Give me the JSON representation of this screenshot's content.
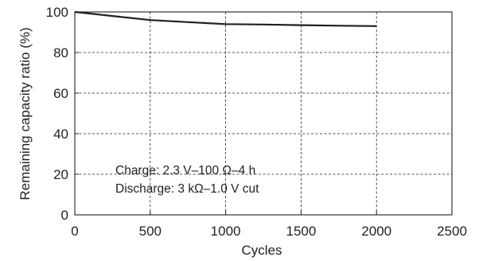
{
  "chart_data": {
    "type": "line",
    "title": "",
    "xlabel": "Cycles",
    "ylabel": "Remaining capacity ratio (%)",
    "xlim": [
      0,
      2500
    ],
    "ylim": [
      0,
      100
    ],
    "x_ticks": [
      0,
      500,
      1000,
      1500,
      2000,
      2500
    ],
    "y_ticks": [
      0,
      20,
      40,
      60,
      80,
      100
    ],
    "grid": "dashed",
    "series": [
      {
        "x": [
          0,
          250,
          500,
          750,
          1000,
          1250,
          1500,
          1750,
          2000
        ],
        "y": [
          100,
          98,
          96,
          95,
          94,
          93.8,
          93.5,
          93.2,
          93
        ]
      }
    ],
    "annotations": [
      "Charge: 2.3 V–100 Ω–4 h",
      "Discharge: 3 kΩ–1.0 V cut"
    ],
    "colors": {
      "line": "#231f20",
      "grid": "#231f20",
      "text": "#231f20"
    }
  }
}
